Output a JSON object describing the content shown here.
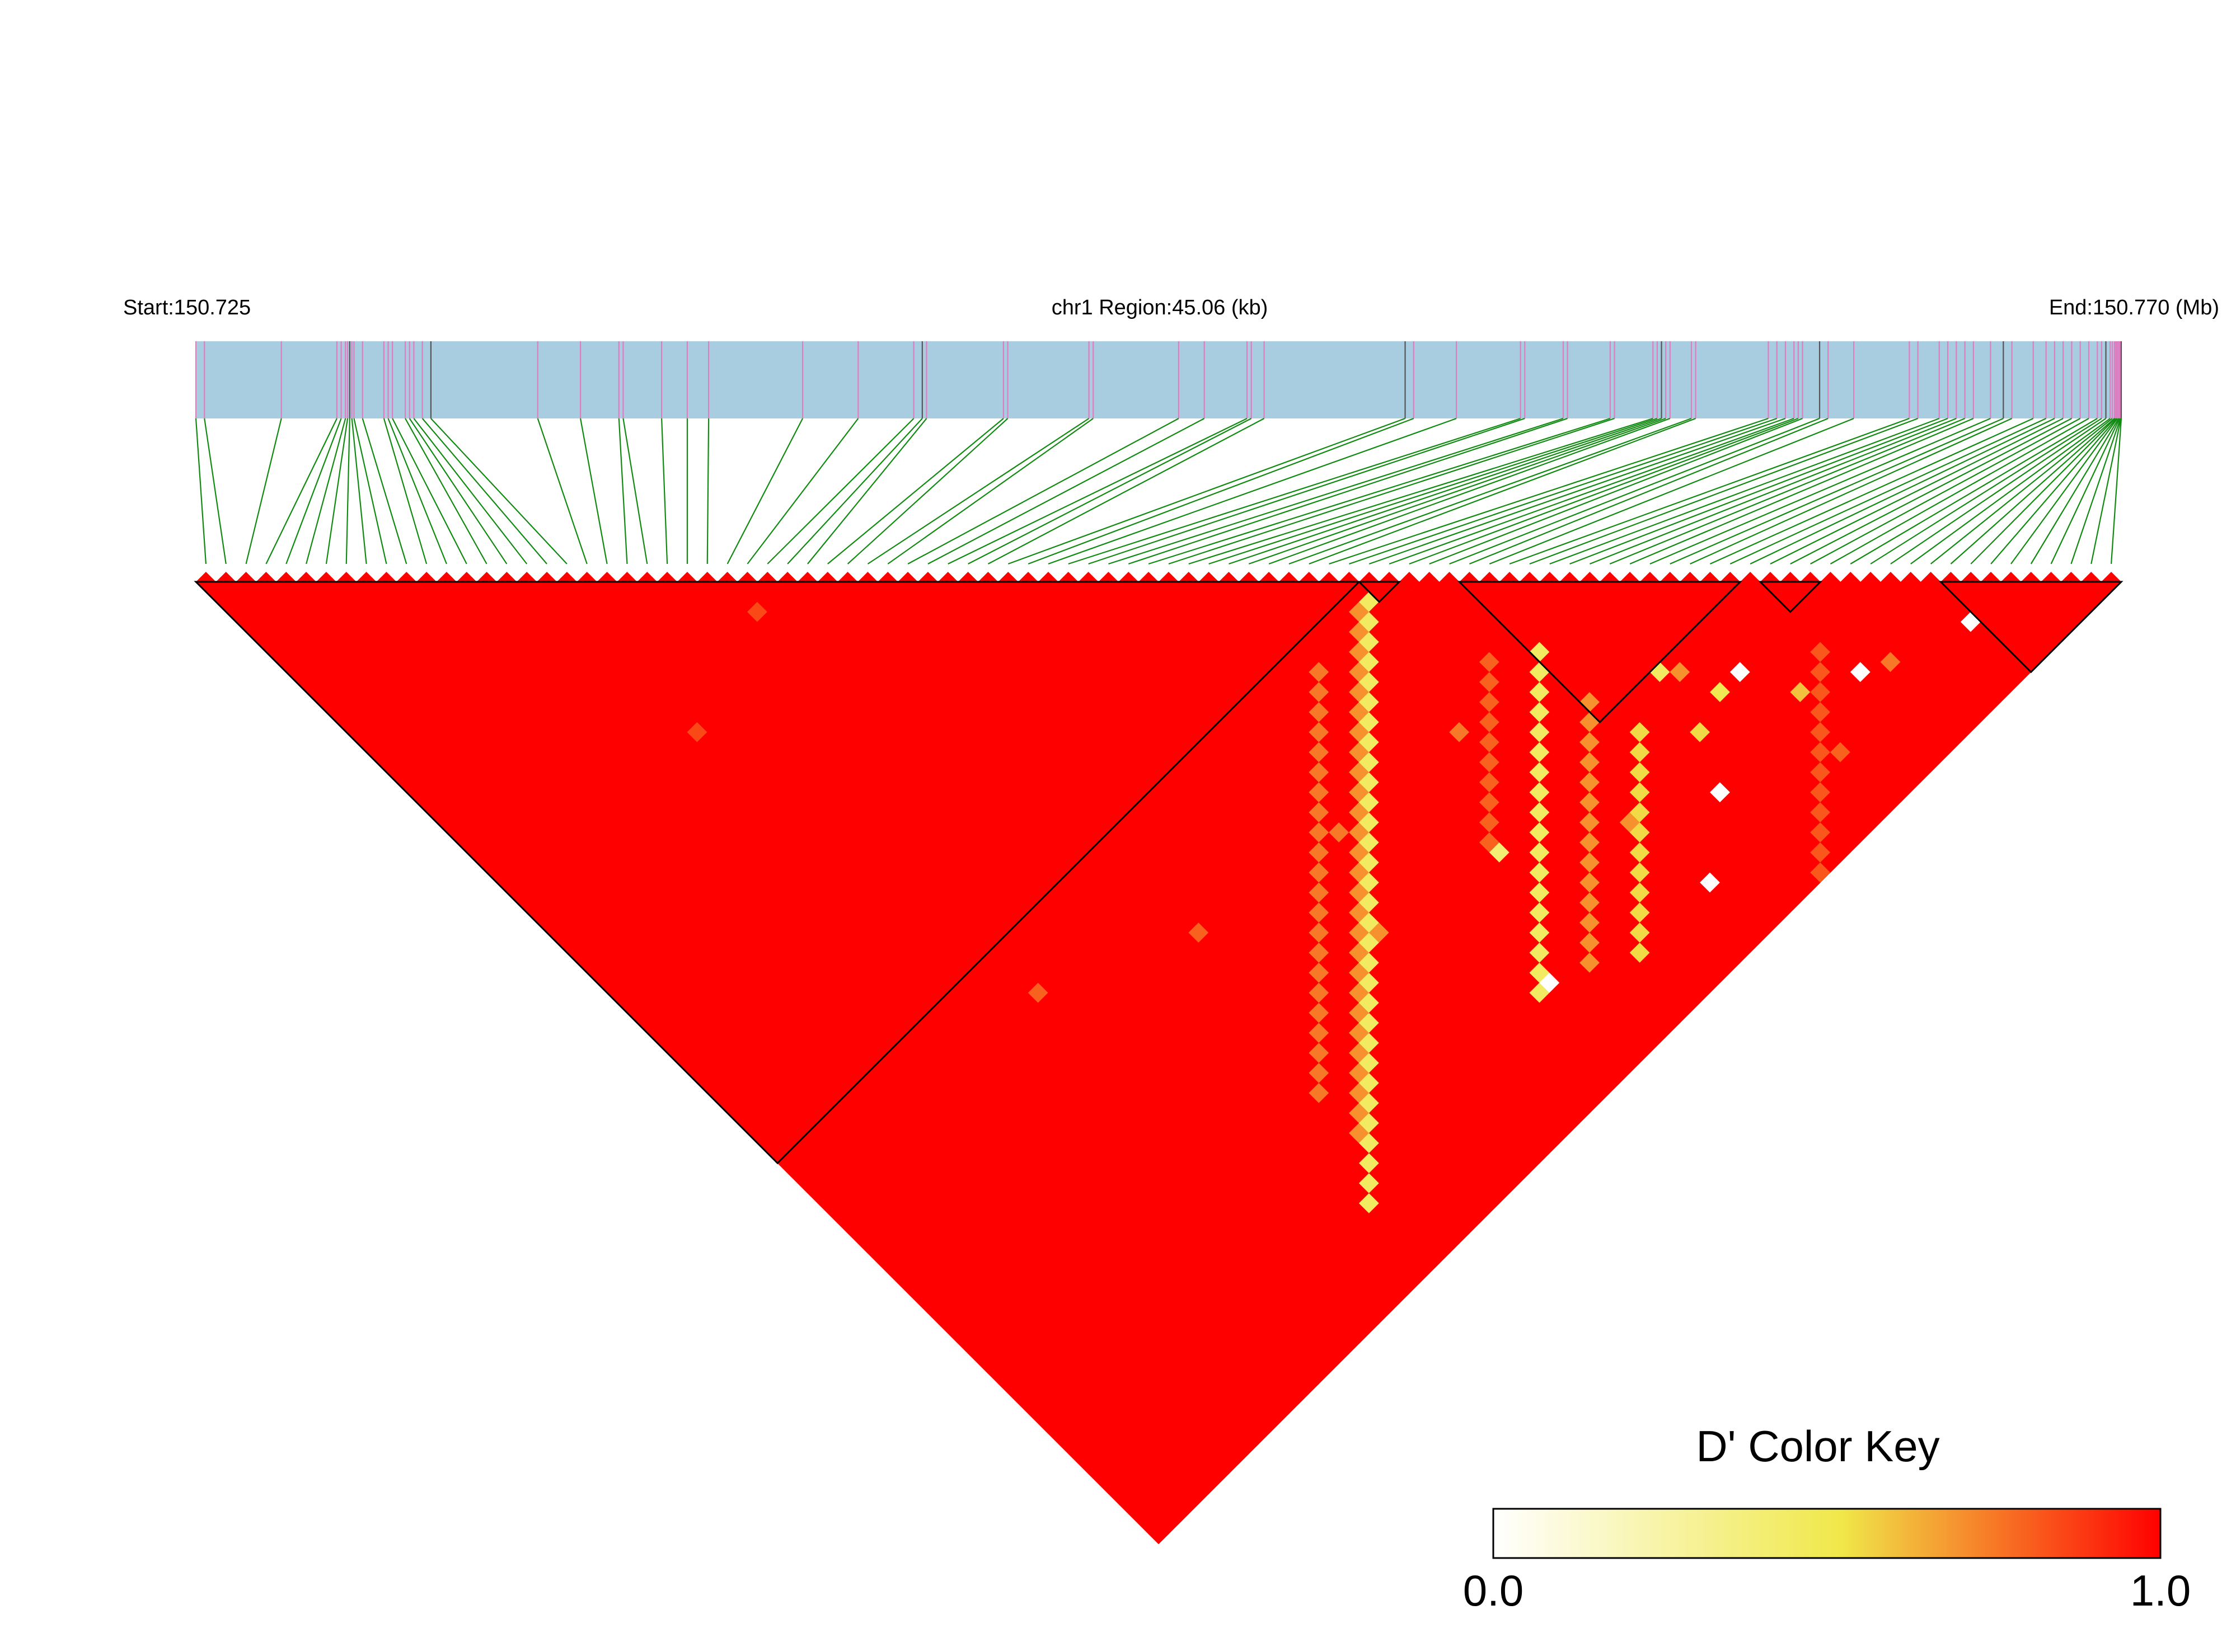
{
  "chart_data": {
    "type": "heatmap",
    "subtype": "linkage-disequilibrium-triangle",
    "header": {
      "start_label": "Start:150.725",
      "region_label": "chr1 Region:45.06 (kb)",
      "end_label": "End:150.770 (Mb)"
    },
    "region": {
      "chromosome": "chr1",
      "start_mb": 150.725,
      "end_mb": 150.77,
      "length_kb": 45.06
    },
    "snp_count": 96,
    "snp_positions_kb": [
      0.0,
      0.2,
      2.0,
      3.3,
      3.4,
      3.5,
      3.55,
      3.6,
      3.65,
      3.7,
      3.9,
      4.4,
      4.5,
      4.6,
      4.9,
      5.0,
      5.1,
      5.3,
      5.5,
      8.0,
      9.0,
      9.9,
      10.0,
      10.9,
      11.5,
      12.0,
      14.2,
      15.5,
      16.8,
      17.0,
      17.1,
      18.9,
      19.0,
      20.9,
      21.0,
      23.0,
      23.6,
      24.6,
      24.7,
      25.0,
      28.3,
      28.5,
      29.5,
      31.0,
      31.1,
      32.0,
      32.1,
      33.1,
      33.2,
      34.1,
      34.2,
      34.3,
      34.4,
      34.5,
      35.0,
      35.1,
      36.8,
      37.0,
      37.2,
      37.4,
      37.5,
      37.6,
      38.0,
      38.2,
      38.8,
      40.1,
      40.3,
      40.8,
      41.0,
      41.2,
      41.4,
      41.6,
      42.0,
      42.3,
      42.5,
      43.0,
      43.3,
      43.5,
      43.7,
      43.9,
      44.1,
      44.3,
      44.5,
      44.6,
      44.7,
      44.8,
      44.85,
      44.9,
      44.92,
      44.95,
      44.97,
      45.0,
      45.02,
      45.04,
      45.05,
      45.06
    ],
    "haplotype_blocks": [
      {
        "first_snp": 1,
        "last_snp": 58
      },
      {
        "first_snp": 59,
        "last_snp": 60
      },
      {
        "first_snp": 64,
        "last_snp": 77
      },
      {
        "first_snp": 79,
        "last_snp": 81
      },
      {
        "first_snp": 88,
        "last_snp": 96
      }
    ],
    "ld_default_dprime": 1.0,
    "low_ld_bands": [
      {
        "i_start": 58,
        "j_start": 60,
        "length": 31,
        "value": 0.45
      },
      {
        "i_start": 57,
        "j_start": 60,
        "length": 27,
        "value": 0.7
      },
      {
        "i_start": 52,
        "j_start": 61,
        "length": 22,
        "value": 0.75
      },
      {
        "i_start": 64,
        "j_start": 71,
        "length": 18,
        "value": 0.45
      },
      {
        "i_start": 64,
        "j_start": 76,
        "length": 14,
        "value": 0.7
      },
      {
        "i_start": 78,
        "j_start": 85,
        "length": 28,
        "value": 0.82
      },
      {
        "i_start": 65,
        "j_start": 80,
        "length": 12,
        "value": 0.55
      },
      {
        "i_start": 61,
        "j_start": 69,
        "length": 10,
        "value": 0.8
      }
    ],
    "ld_scatter_cells": [
      {
        "i": 79,
        "j": 88,
        "value": 0.0
      },
      {
        "i": 87,
        "j": 91,
        "value": 0.0
      },
      {
        "i": 73,
        "j": 82,
        "value": 0.0
      },
      {
        "i": 66,
        "j": 87,
        "value": 0.0
      },
      {
        "i": 61,
        "j": 91,
        "value": 0.0
      },
      {
        "i": 48,
        "j": 88,
        "value": 0.0
      },
      {
        "i": 52,
        "j": 79,
        "value": 0.4
      },
      {
        "i": 63,
        "j": 72,
        "value": 0.45
      },
      {
        "i": 71,
        "j": 82,
        "value": 0.5
      },
      {
        "i": 68,
        "j": 83,
        "value": 0.55
      },
      {
        "i": 69,
        "j": 78,
        "value": 0.45
      },
      {
        "i": 75,
        "j": 86,
        "value": 0.6
      },
      {
        "i": 56,
        "j": 71,
        "value": 0.75
      },
      {
        "i": 22,
        "j": 63,
        "value": 0.8
      },
      {
        "i": 45,
        "j": 70,
        "value": 0.75
      },
      {
        "i": 70,
        "j": 79,
        "value": 0.7
      },
      {
        "i": 81,
        "j": 89,
        "value": 0.75
      },
      {
        "i": 74,
        "j": 91,
        "value": 0.8
      },
      {
        "i": 60,
        "j": 84,
        "value": 0.7
      },
      {
        "i": 42,
        "j": 77,
        "value": 0.7
      },
      {
        "i": 33,
        "j": 68,
        "value": 0.8
      },
      {
        "i": 27,
        "j": 30,
        "value": 0.85
      },
      {
        "i": 18,
        "j": 33,
        "value": 0.85
      }
    ],
    "color_key": {
      "title": "D' Color Key",
      "min_label": "0.0",
      "max_label": "1.0",
      "stops": [
        "#ffffff",
        "#f0e84a",
        "#ff0000"
      ]
    },
    "colors": {
      "gene_bar": "#a8cde0",
      "snp_tick": "#e07cc0",
      "snp_tick_alt": "#555555",
      "connector": "#118a11",
      "ld_high": "#ff0000",
      "block_outline": "#000000"
    }
  }
}
